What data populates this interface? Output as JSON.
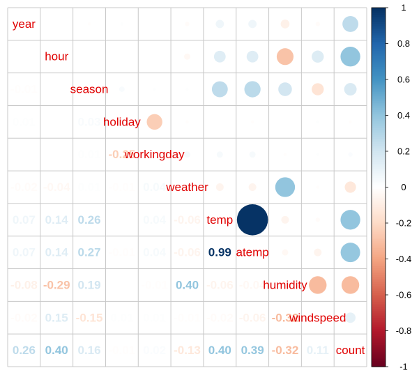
{
  "chart_data": {
    "type": "heatmap",
    "title": "",
    "variables": [
      "year",
      "hour",
      "season",
      "holiday",
      "workingday",
      "weather",
      "temp",
      "atemp",
      "humidity",
      "windspeed",
      "count"
    ],
    "matrix": [
      [
        1.0,
        0.0,
        -0.01,
        0.01,
        -0.0,
        -0.02,
        0.07,
        0.07,
        -0.08,
        -0.02,
        0.26
      ],
      [
        0.0,
        1.0,
        0.0,
        0.0,
        0.0,
        -0.04,
        0.14,
        0.14,
        -0.29,
        0.15,
        0.4
      ],
      [
        -0.01,
        0.0,
        1.0,
        0.03,
        0.01,
        0.01,
        0.26,
        0.27,
        0.19,
        -0.15,
        0.16
      ],
      [
        0.01,
        0.0,
        0.03,
        1.0,
        -0.25,
        -0.01,
        0.0,
        -0.01,
        0.0,
        0.01,
        -0.01
      ],
      [
        -0.0,
        0.0,
        0.01,
        -0.25,
        1.0,
        0.04,
        0.04,
        0.04,
        -0.01,
        0.01,
        0.02
      ],
      [
        -0.02,
        -0.04,
        0.01,
        -0.01,
        0.04,
        1.0,
        -0.06,
        -0.06,
        0.4,
        -0.01,
        -0.13
      ],
      [
        0.07,
        0.14,
        0.26,
        0.0,
        0.04,
        -0.06,
        1.0,
        0.99,
        -0.06,
        -0.02,
        0.4
      ],
      [
        0.07,
        0.14,
        0.27,
        -0.01,
        0.04,
        -0.06,
        0.99,
        1.0,
        -0.04,
        -0.06,
        0.39
      ],
      [
        -0.08,
        -0.29,
        0.19,
        0.0,
        -0.01,
        0.4,
        -0.06,
        -0.04,
        1.0,
        -0.32,
        -0.32
      ],
      [
        -0.02,
        0.15,
        -0.15,
        0.01,
        0.01,
        -0.01,
        -0.02,
        -0.06,
        -0.32,
        1.0,
        0.11
      ],
      [
        0.26,
        0.4,
        0.16,
        -0.01,
        0.02,
        -0.13,
        0.4,
        0.39,
        -0.32,
        0.11,
        1.0
      ]
    ],
    "upper": "circle",
    "lower": "number",
    "diagonal": "label",
    "colorbar": {
      "range": [
        -1,
        1
      ],
      "ticks": [
        "1",
        "0.8",
        "0.6",
        "0.4",
        "0.2",
        "0",
        "-0.2",
        "-0.4",
        "-0.6",
        "-0.8",
        "-1"
      ],
      "placement": "right"
    },
    "colors": {
      "negative": "#67001f",
      "neutral": "#ffffff",
      "positive": "#053061",
      "label": "#e00000",
      "grid": "#c8c8c8"
    }
  }
}
